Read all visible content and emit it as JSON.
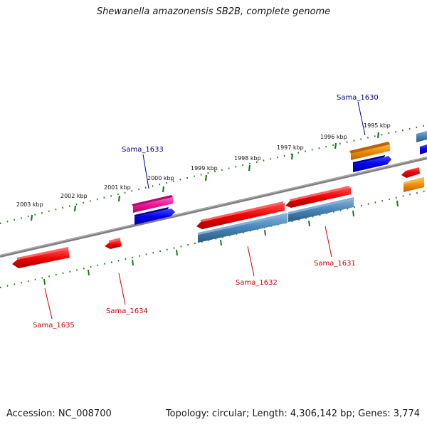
{
  "title": "Shewanella amazonensis SB2B, complete genome",
  "footer": {
    "accession": "Accession: NC_008700",
    "summary": "Topology: circular; Length: 4,306,142 bp; Genes: 3,774"
  },
  "scale_labels": [
    "1995 kbp",
    "1996 kbp",
    "1997 kbp",
    "1998 kbp",
    "1999 kbp",
    "2000 kbp",
    "2001 kbp",
    "2002 kbp",
    "2003 kbp"
  ],
  "gene_labels": [
    {
      "text": "Sama_1630",
      "color": "#00008b"
    },
    {
      "text": "Sama_1633",
      "color": "#00008b"
    },
    {
      "text": "Sama_1631",
      "color": "#cc0000"
    },
    {
      "text": "Sama_1632",
      "color": "#cc0000"
    },
    {
      "text": "Sama_1634",
      "color": "#cc0000"
    },
    {
      "text": "Sama_1635",
      "color": "#cc0000"
    }
  ],
  "colors": {
    "backbone": "#808080",
    "scale_ticks": "#1a7a1a",
    "cds_red": "#ee0000",
    "cds_steelblue": "#4682b4",
    "cds_blue": "#0000ee",
    "cds_pink": "#ee1493",
    "cds_orange": "#ee8800",
    "label_forward": "#00008b",
    "label_reverse": "#cc0000"
  }
}
